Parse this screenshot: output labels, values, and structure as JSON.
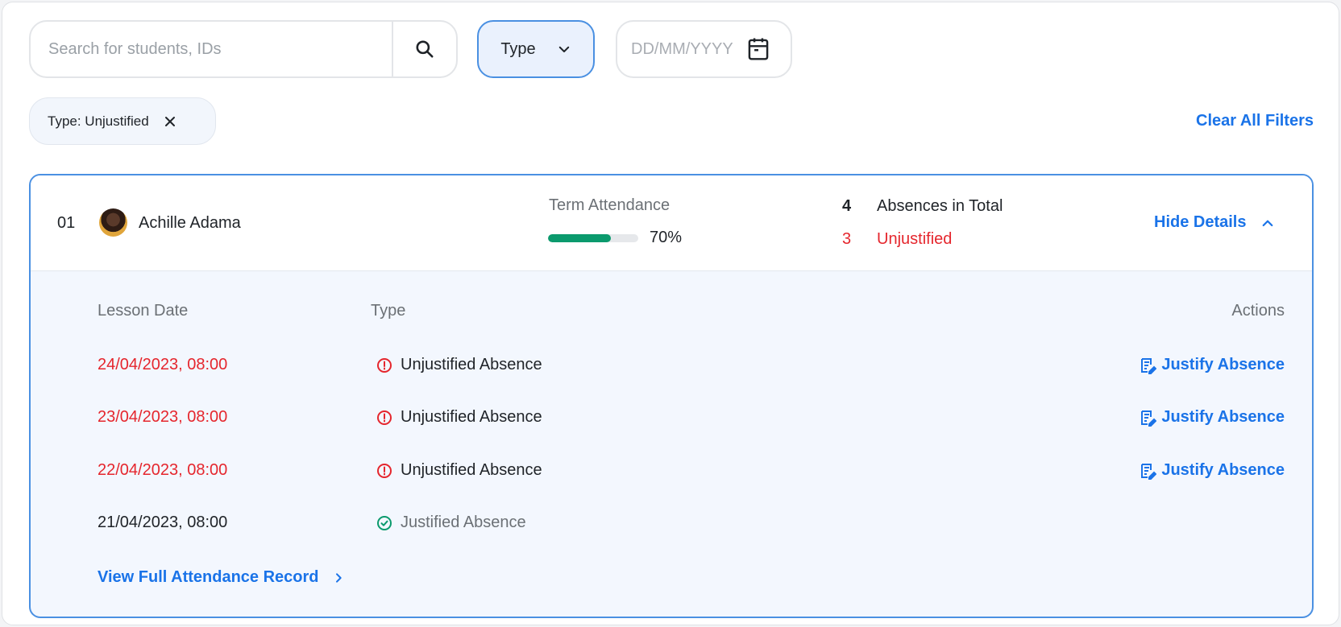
{
  "search": {
    "placeholder": "Search for students, IDs"
  },
  "type_filter": {
    "label": "Type"
  },
  "date_filter": {
    "placeholder": "DD/MM/YYYY"
  },
  "active_filters": [
    {
      "label": "Type: Unjustified"
    }
  ],
  "clear_all_label": "Clear All Filters",
  "colors": {
    "accent": "#1a73e8",
    "danger": "#e5262d",
    "success": "#0b9a6d"
  },
  "student": {
    "index": "01",
    "name": "Achille Adama",
    "term_attendance_label": "Term Attendance",
    "attendance_percent": 70,
    "attendance_text": "70%",
    "absences_total": "4",
    "absences_total_label": "Absences in Total",
    "unjustified_count": "3",
    "unjustified_label": "Unjustified",
    "toggle_label": "Hide Details"
  },
  "details": {
    "columns": {
      "date": "Lesson Date",
      "type": "Type",
      "actions": "Actions"
    },
    "rows": [
      {
        "date": "24/04/2023, 08:00",
        "type": "Unjustified Absence",
        "status": "unjustified",
        "action": "Justify Absence"
      },
      {
        "date": "23/04/2023, 08:00",
        "type": "Unjustified Absence",
        "status": "unjustified",
        "action": "Justify Absence"
      },
      {
        "date": "22/04/2023, 08:00",
        "type": "Unjustified Absence",
        "status": "unjustified",
        "action": "Justify Absence"
      },
      {
        "date": "21/04/2023, 08:00",
        "type": "Justified Absence",
        "status": "justified",
        "action": ""
      }
    ],
    "view_full_label": "View Full Attendance Record"
  }
}
